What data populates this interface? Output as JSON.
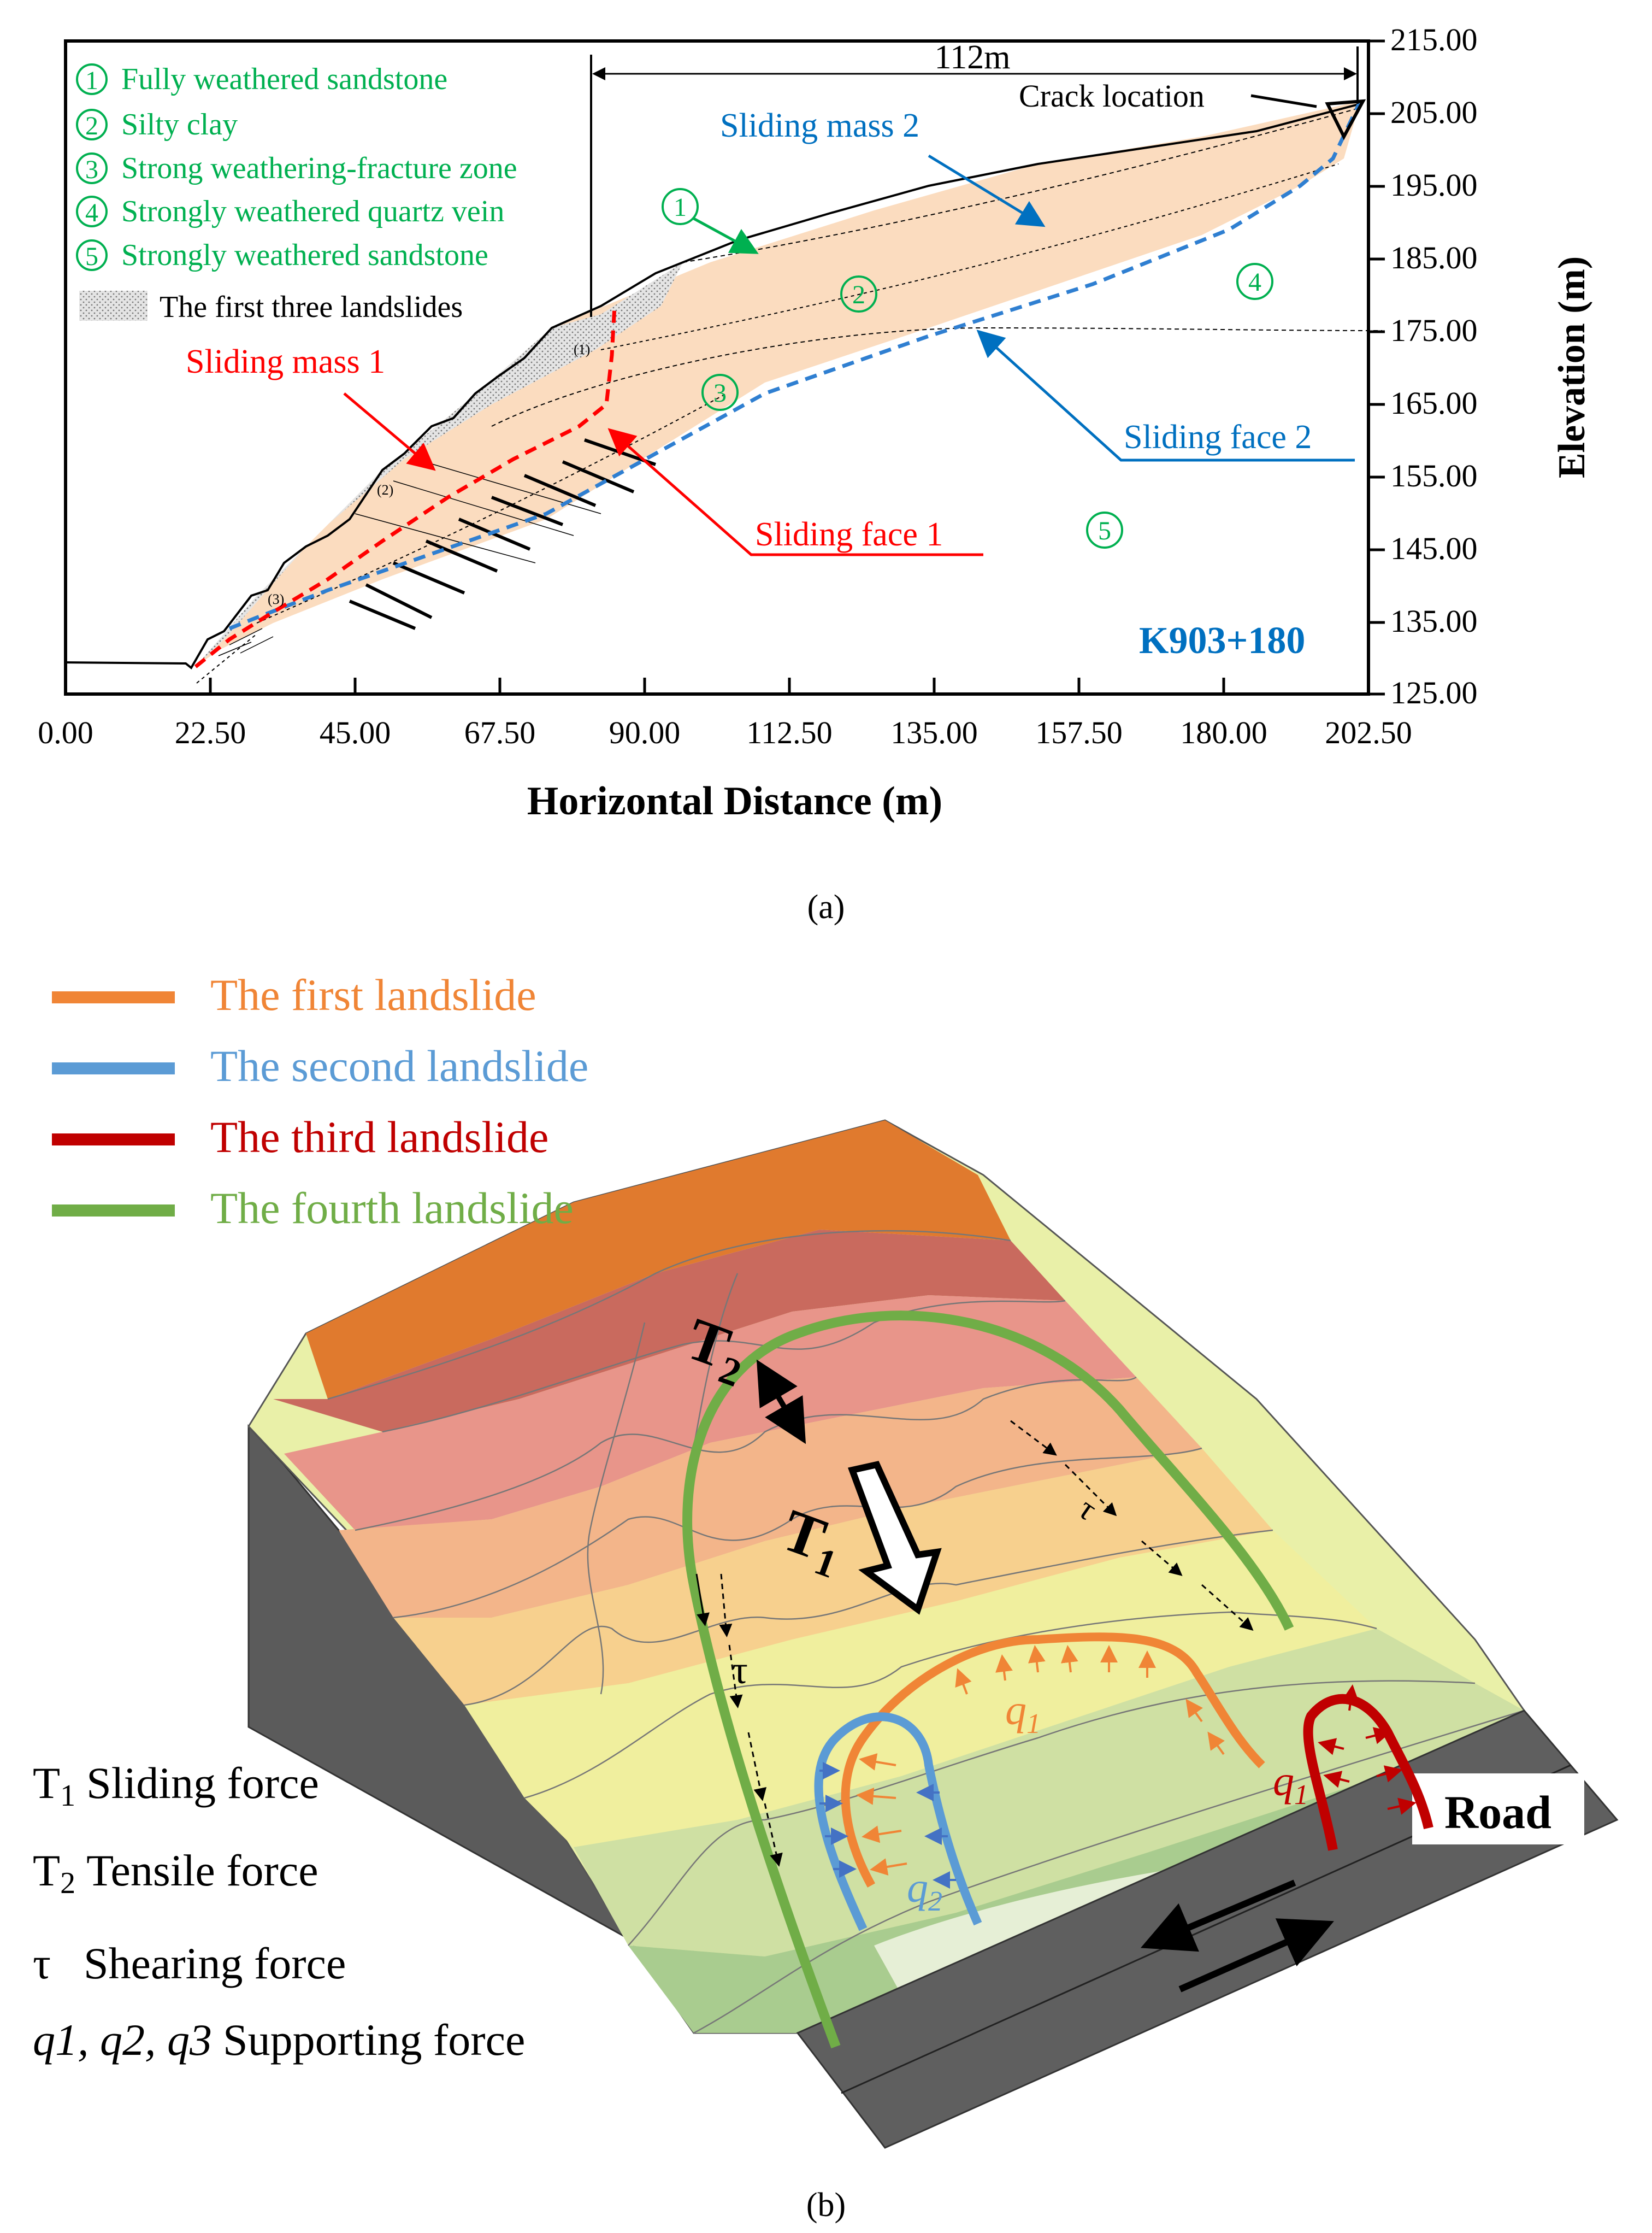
{
  "panel_a": {
    "legend": [
      {
        "num": "1",
        "label": "Fully weathered sandstone"
      },
      {
        "num": "2",
        "label": "Silty clay"
      },
      {
        "num": "3",
        "label": "Strong weathering-fracture zone"
      },
      {
        "num": "4",
        "label": "Strongly weathered quartz vein"
      },
      {
        "num": "5",
        "label": "Strongly weathered sandstone"
      }
    ],
    "landslides_legend": "The first three landslides",
    "span_label": "112m",
    "crack_label": "Crack location",
    "sliding_mass_1": "Sliding mass 1",
    "sliding_mass_2": "Sliding mass 2",
    "sliding_face_1": "Sliding face 1",
    "sliding_face_2": "Sliding face 2",
    "station": "K903+180",
    "zone_nums": [
      "1",
      "2",
      "3",
      "4",
      "5"
    ],
    "slide_nums": [
      "(1)",
      "(2)",
      "(3)"
    ],
    "x_axis_title": "Horizontal Distance (m)",
    "y_axis_title": "Elevation (m)",
    "x_ticks": [
      "0.00",
      "22.50",
      "45.00",
      "67.50",
      "90.00",
      "112.50",
      "135.00",
      "157.50",
      "180.00",
      "202.50"
    ],
    "y_ticks": [
      "215.00",
      "205.00",
      "195.00",
      "185.00",
      "175.00",
      "165.00",
      "155.00",
      "145.00",
      "135.00",
      "125.00"
    ],
    "caption": "(a)"
  },
  "panel_b": {
    "legend": [
      {
        "label": "The first landslide",
        "color": "#f08536"
      },
      {
        "label": "The second landslide",
        "color": "#5b9bd5"
      },
      {
        "label": "The third landslide",
        "color": "#c00000"
      },
      {
        "label": "The fourth landslide",
        "color": "#70ad47"
      }
    ],
    "forces": [
      {
        "sym": "T",
        "sub": "1",
        "text": "Sliding force"
      },
      {
        "sym": "T",
        "sub": "2",
        "text": "Tensile force"
      },
      {
        "sym": "τ",
        "sub": "",
        "text": "Shearing force"
      }
    ],
    "q_list": "q1, q2, q3",
    "q_text": "Supporting force",
    "road_label": "Road",
    "T1": "T",
    "T1_sub": "1",
    "T2": "T",
    "T2_sub": "2",
    "tau": "τ",
    "q1": "q",
    "q1_sub": "1",
    "q2": "q",
    "q2_sub": "2",
    "caption": "(b)"
  }
}
